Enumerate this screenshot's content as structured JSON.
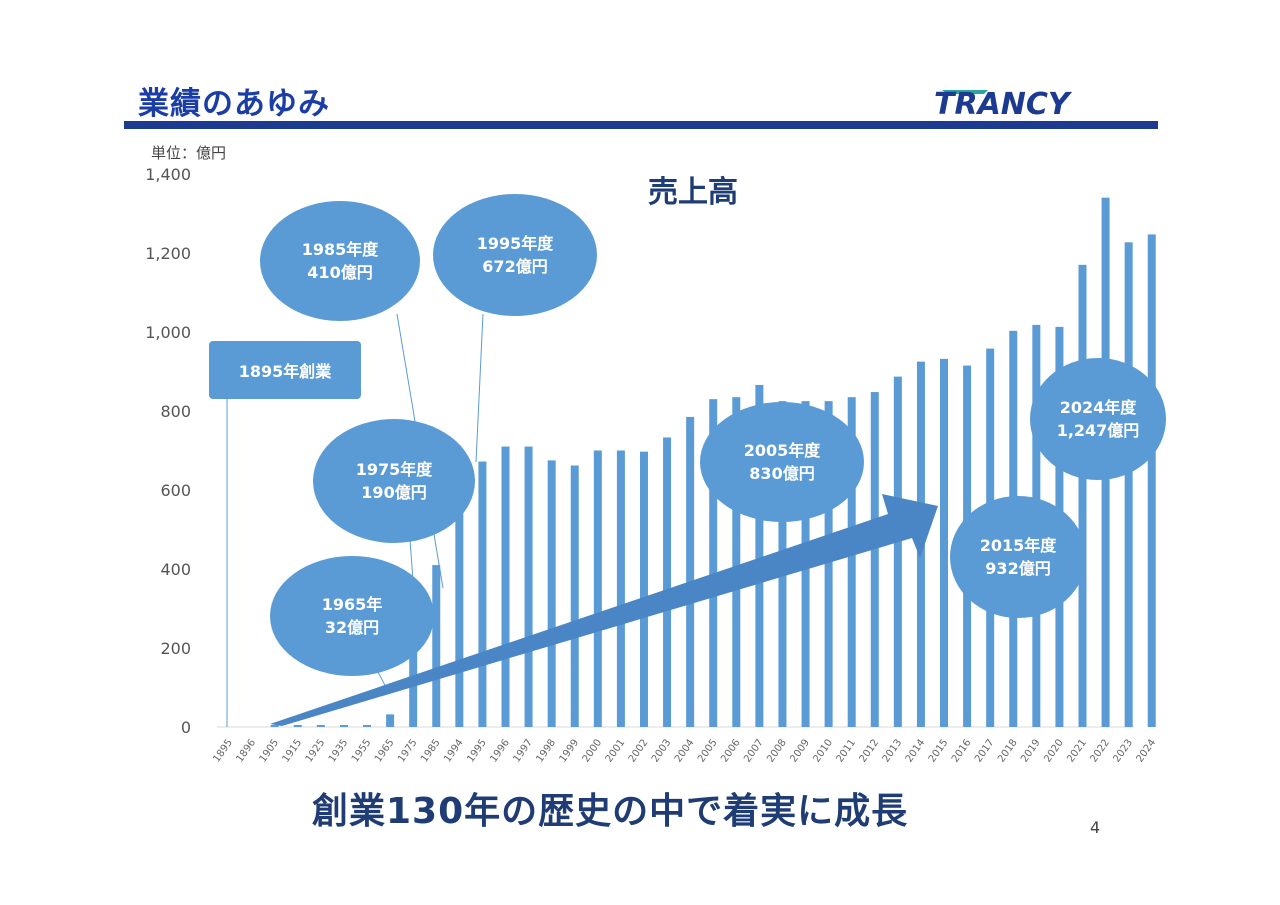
{
  "header": {
    "title": "業績のあゆみ",
    "logo_text": "TRANCY"
  },
  "chart_data": {
    "type": "bar",
    "title": "売上高",
    "unit_label": "単位：億円",
    "ylim": [
      0,
      1400
    ],
    "yticks": [
      "0",
      "200",
      "400",
      "600",
      "800",
      "1,000",
      "1,200",
      "1,400"
    ],
    "categories": [
      "1895",
      "1896",
      "1905",
      "1915",
      "1925",
      "1935",
      "1955",
      "1965",
      "1975",
      "1985",
      "1994",
      "1995",
      "1996",
      "1997",
      "1998",
      "1999",
      "2000",
      "2001",
      "2002",
      "2003",
      "2004",
      "2005",
      "2006",
      "2007",
      "2008",
      "2009",
      "2010",
      "2011",
      "2012",
      "2013",
      "2014",
      "2015",
      "2016",
      "2017",
      "2018",
      "2019",
      "2020",
      "2021",
      "2022",
      "2023",
      "2024"
    ],
    "values": [
      0,
      0,
      5,
      5,
      5,
      5,
      5,
      32,
      190,
      410,
      600,
      672,
      710,
      710,
      675,
      662,
      700,
      700,
      697,
      733,
      785,
      830,
      835,
      866,
      825,
      825,
      825,
      835,
      848,
      887,
      925,
      932,
      915,
      958,
      1003,
      1018,
      1013,
      1170,
      1340,
      1227,
      1247
    ],
    "grid": false,
    "legend": "none"
  },
  "annotations": {
    "founding": "1895年創業",
    "y1965_line1": "1965年",
    "y1965_line2": "32億円",
    "y1975_line1": "1975年度",
    "y1975_line2": "190億円",
    "y1985_line1": "1985年度",
    "y1985_line2": "410億円",
    "y1995_line1": "1995年度",
    "y1995_line2": "672億円",
    "y2005_line1": "2005年度",
    "y2005_line2": "830億円",
    "y2015_line1": "2015年度",
    "y2015_line2": "932億円",
    "y2024_line1": "2024年度",
    "y2024_line2": "1,247億円"
  },
  "footer": {
    "caption": "創業130年の歴史の中で着実に成長",
    "page_number": "4"
  },
  "colors": {
    "bar": "#5b9bd5",
    "title": "#1a3ea6",
    "bar_accent": "#1c3a8f",
    "arrow": "#4a86c5"
  }
}
